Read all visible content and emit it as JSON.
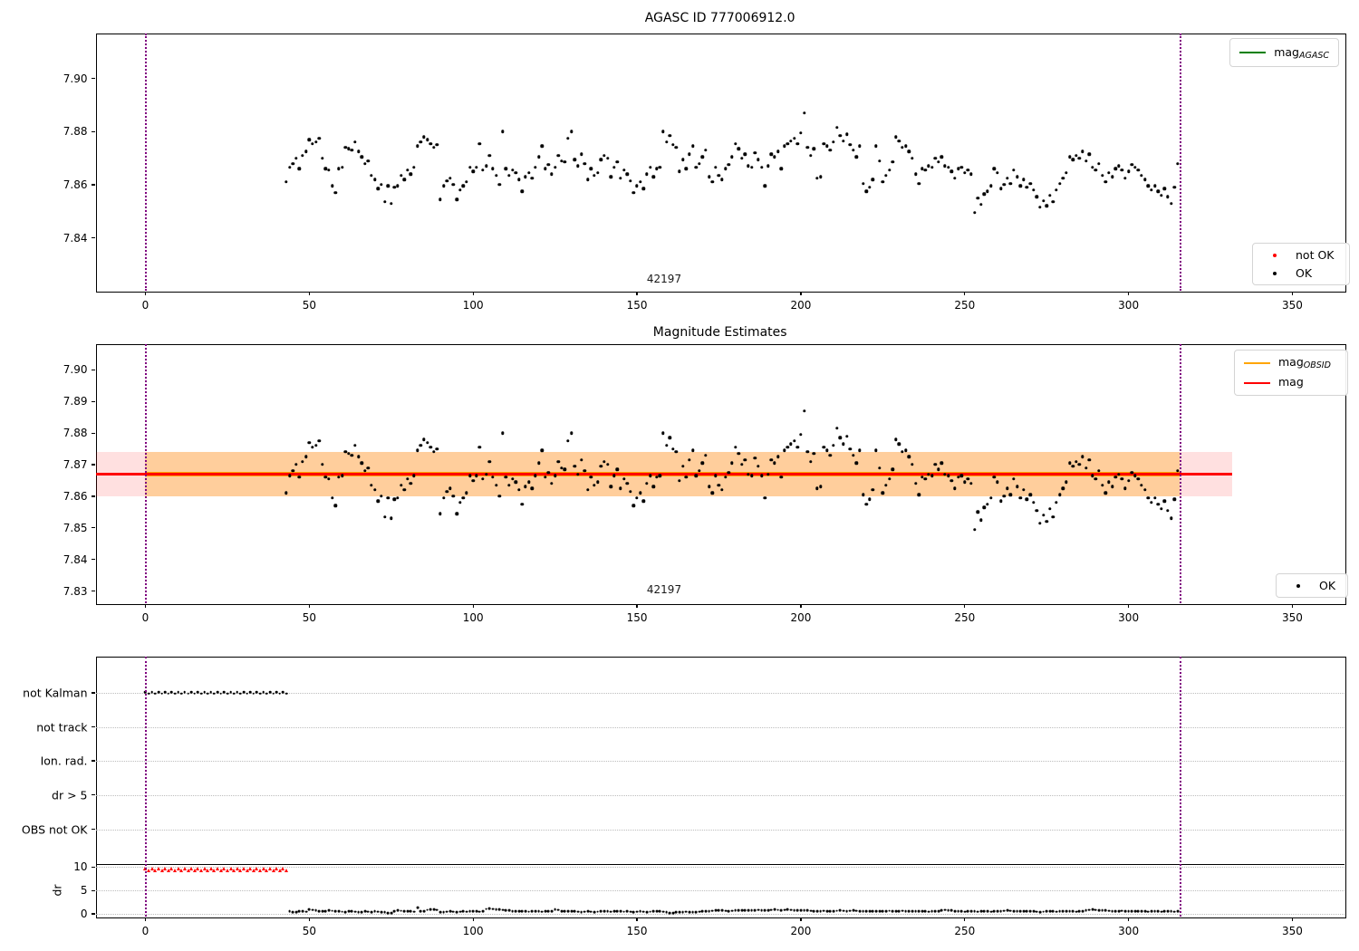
{
  "colors": {
    "marker_ok": "#000000",
    "marker_not_ok": "#ff0000",
    "mag_agasc_line": "#008000",
    "mag_obsid_line": "#ffa500",
    "mag_line": "#ff0000",
    "obsid_vline": "#800080",
    "mag_band_fill": "rgba(255,0,0,0.12)",
    "obsid_band_fill": "rgba(255,165,0,0.30)",
    "grid": "#bdbdbd"
  },
  "plot1": {
    "title": "AGASC ID 777006912.0",
    "annotation": "42197",
    "legend_line": {
      "main": "mag",
      "sub": "AGASC"
    },
    "legend_markers": [
      {
        "label": "not OK",
        "color": "#ff0000"
      },
      {
        "label": "OK",
        "color": "#000000"
      }
    ],
    "yticks": [
      "7.90",
      "7.88",
      "7.86",
      "7.84"
    ],
    "xticks": [
      "0",
      "50",
      "100",
      "150",
      "200",
      "250",
      "300",
      "350"
    ]
  },
  "plot2": {
    "title": "Magnitude Estimates",
    "annotation": "42197",
    "legend_lines": [
      {
        "main": "mag",
        "sub": "OBSID",
        "color": "#ffa500"
      },
      {
        "main": "mag",
        "sub": "",
        "color": "#ff0000"
      }
    ],
    "legend_markers": [
      {
        "label": "OK",
        "color": "#000000"
      }
    ],
    "yticks": [
      "7.90",
      "7.89",
      "7.88",
      "7.87",
      "7.86",
      "7.85",
      "7.84",
      "7.83"
    ],
    "xticks": [
      "0",
      "50",
      "100",
      "150",
      "200",
      "250",
      "300",
      "350"
    ]
  },
  "plot3": {
    "flag_labels": [
      "not Kalman",
      "not track",
      "Ion. rad.",
      "dr > 5",
      "OBS not OK"
    ],
    "dr_ticks": [
      "10",
      "5",
      "0"
    ],
    "ylabel": "dr",
    "xticks": [
      "0",
      "50",
      "100",
      "150",
      "200",
      "250",
      "300",
      "350"
    ]
  },
  "chart_data": [
    {
      "type": "scatter",
      "title": "AGASC ID 777006912.0",
      "xlim": [
        -15.2,
        365.9
      ],
      "ylim": [
        7.8203,
        7.9171
      ],
      "xtick_values": [
        0,
        50,
        100,
        150,
        200,
        250,
        300,
        350
      ],
      "ytick_values": [
        7.9,
        7.88,
        7.86,
        7.84
      ],
      "vlines": [
        0,
        315.5
      ],
      "annotation": {
        "text": "42197",
        "x": 158,
        "y": 7.825
      },
      "legend": [
        "mag_AGASC",
        "not OK",
        "OK"
      ],
      "ok_series": {
        "x_start": 43,
        "x_step": 1,
        "mag_base": 7.8,
        "mag_offsets_x1000": [
          61,
          66.5,
          68,
          70,
          66,
          71,
          72.5,
          77,
          75.5,
          76,
          77.5,
          70,
          66,
          65.5,
          59.5,
          57,
          66,
          66.5,
          74,
          73.5,
          73,
          76,
          72.5,
          70.5,
          68,
          69,
          63.5,
          62,
          58.5,
          60,
          53.5,
          59.5,
          53,
          59,
          59.5,
          63.5,
          62,
          65.5,
          64,
          66.5,
          74.5,
          76,
          78,
          77,
          75.5,
          74,
          75,
          54.5,
          59.5,
          61.5,
          62.5,
          60,
          54.5,
          58,
          59.5,
          61,
          66.5,
          65,
          66.5,
          75.5,
          65.5,
          67,
          71,
          66,
          63.5,
          60,
          80,
          66,
          63.5,
          65.5,
          64.5,
          62,
          57.5,
          63,
          64.5,
          62.5,
          66.5,
          70.5,
          74.5,
          66,
          67.5,
          64,
          66.5,
          71,
          69,
          68.5,
          77.5,
          80,
          69.5,
          67,
          71.5,
          68,
          62,
          66,
          63.5,
          64.5,
          69.5,
          71,
          70,
          63,
          66.5,
          68.5,
          62.5,
          65.5,
          64,
          61.5,
          57,
          59.5,
          61,
          58.5,
          64,
          66.5,
          63,
          66,
          66.5,
          80,
          76,
          78.5,
          75,
          74,
          65,
          69.5,
          66,
          71.5,
          74.5,
          66.5,
          68,
          70.5,
          73,
          63,
          61,
          66.5,
          63.5,
          62,
          66,
          67.5,
          70.5,
          75.5,
          73.5,
          70,
          71.5,
          67,
          66.5,
          72,
          69.5,
          66.5,
          59.5,
          67,
          71.5,
          70.5,
          72.5,
          66,
          74.5,
          75.5,
          76.5,
          77.5,
          75.5,
          79.5,
          87,
          74,
          71,
          73.5,
          62.5,
          63,
          75.5,
          74.5,
          73,
          76,
          81.5,
          78.5,
          76.5,
          79,
          75,
          73,
          70.5,
          74.5,
          60.5,
          57.5,
          59,
          62,
          74.5,
          69,
          61,
          63.5,
          65.5,
          68.5,
          78,
          76.5,
          74,
          74.5,
          72.5,
          70,
          64,
          60.5,
          66,
          65.5,
          67,
          66.5,
          70,
          68.5,
          70.5,
          67,
          66.5,
          65,
          62.5,
          66,
          66.5,
          64.5,
          65.5,
          64,
          49.5,
          55,
          52.5,
          56.5,
          57.5,
          59.5,
          66,
          64.5,
          58.5,
          60,
          62.5,
          60.5,
          65.5,
          63,
          59.5,
          62,
          59,
          60.5,
          58,
          55.5,
          51.5,
          54,
          52,
          56,
          53.5,
          58,
          60.5,
          62.5,
          64.5,
          70.5,
          69.5,
          71,
          70,
          72.5,
          69,
          71.5,
          66.5,
          65.5,
          68,
          63.5,
          61,
          64.5,
          63,
          66,
          67,
          65.5,
          62.5,
          65,
          67.5,
          66.5,
          65.5,
          63.5,
          62,
          59.5,
          58,
          59.5,
          57.5,
          56,
          58.5,
          55.5,
          53,
          59,
          68
        ]
      }
    },
    {
      "type": "scatter",
      "title": "Magnitude Estimates",
      "xlim": [
        -15.2,
        365.9
      ],
      "ylim": [
        7.8262,
        7.9081
      ],
      "xtick_values": [
        0,
        50,
        100,
        150,
        200,
        250,
        300,
        350
      ],
      "ytick_values": [
        7.9,
        7.89,
        7.88,
        7.87,
        7.86,
        7.85,
        7.84,
        7.83
      ],
      "vlines": [
        0,
        315.5
      ],
      "annotation": {
        "text": "42197",
        "x": 158,
        "y": 7.8285
      },
      "legend": [
        "mag_OBSID",
        "mag",
        "OK"
      ],
      "ok_series_same_as_chart": 0,
      "mag_line": {
        "value": 7.867,
        "x_span": [
          -15.2,
          331.6
        ],
        "color": "#ff0000"
      },
      "mag_band": {
        "lo": 7.86,
        "hi": 7.874,
        "x_span": [
          -15.2,
          331.6
        ]
      },
      "obsid_line": {
        "value": 7.867,
        "x_span": [
          0,
          315.5
        ],
        "color": "#ffa500"
      },
      "obsid_band": {
        "lo": 7.86,
        "hi": 7.874,
        "x_span": [
          0,
          315.5
        ]
      }
    },
    {
      "type": "scatter",
      "title": "",
      "xlim": [
        -15.2,
        365.9
      ],
      "xtick_values": [
        0,
        50,
        100,
        150,
        200,
        250,
        300,
        350
      ],
      "vlines": [
        0,
        315.5
      ],
      "flag_rows": [
        "not Kalman",
        "not track",
        "Ion. rad.",
        "dr > 5",
        "OBS not OK"
      ],
      "not_kalman_flagged": {
        "x_start": 0,
        "x_end": 43
      },
      "dr_ylim": [
        0,
        10.8
      ],
      "dr_ytick_values": [
        10,
        5,
        0
      ],
      "separator_line_dr": 10.6,
      "dr_not_ok_series": {
        "x_start": 0,
        "x_end": 43,
        "value_approx": 9.5,
        "color": "#ff0000"
      },
      "dr_ok_series": {
        "x_start": 44,
        "x_step": 1,
        "dr_x100": [
          50,
          30,
          35,
          55,
          50,
          45,
          90,
          85,
          75,
          60,
          50,
          55,
          70,
          65,
          55,
          50,
          45,
          40,
          55,
          50,
          45,
          30,
          35,
          55,
          45,
          40,
          50,
          45,
          35,
          30,
          25,
          20,
          60,
          70,
          65,
          60,
          55,
          50,
          45,
          130,
          55,
          50,
          85,
          95,
          90,
          85,
          35,
          30,
          45,
          50,
          45,
          40,
          45,
          50,
          45,
          50,
          55,
          50,
          45,
          50,
          105,
          110,
          105,
          100,
          90,
          85,
          80,
          75,
          60,
          55,
          50,
          55,
          50,
          45,
          50,
          55,
          50,
          45,
          50,
          55,
          50,
          90,
          85,
          60,
          55,
          50,
          55,
          50,
          45,
          40,
          45,
          50,
          45,
          40,
          45,
          50,
          55,
          50,
          45,
          50,
          55,
          50,
          45,
          50,
          45,
          40,
          45,
          50,
          45,
          40,
          45,
          50,
          55,
          50,
          45,
          40,
          20,
          25,
          30,
          35,
          40,
          45,
          40,
          35,
          40,
          45,
          50,
          55,
          60,
          65,
          70,
          75,
          70,
          65,
          60,
          65,
          70,
          75,
          80,
          75,
          70,
          75,
          80,
          85,
          80,
          75,
          80,
          85,
          90,
          85,
          80,
          85,
          90,
          85,
          80,
          75,
          70,
          75,
          70,
          65,
          60,
          55,
          60,
          65,
          60,
          55,
          60,
          65,
          70,
          65,
          60,
          65,
          70,
          65,
          60,
          55,
          50,
          55,
          60,
          55,
          50,
          55,
          60,
          65,
          60,
          55,
          60,
          65,
          60,
          55,
          50,
          55,
          60,
          55,
          50,
          45,
          50,
          55,
          60,
          80,
          85,
          80,
          75,
          60,
          55,
          50,
          45,
          50,
          55,
          50,
          45,
          50,
          55,
          50,
          45,
          50,
          55,
          60,
          65,
          70,
          65,
          60,
          55,
          50,
          55,
          60,
          55,
          50,
          45,
          40,
          45,
          50,
          55,
          50,
          45,
          50,
          55,
          60,
          55,
          50,
          45,
          50,
          55,
          80,
          85,
          90,
          85,
          80,
          75,
          70,
          65,
          60,
          55,
          60,
          65,
          60,
          55,
          50,
          55,
          60,
          55,
          50,
          45,
          50,
          55,
          50,
          45,
          50,
          55,
          50,
          45,
          50
        ]
      }
    }
  ]
}
